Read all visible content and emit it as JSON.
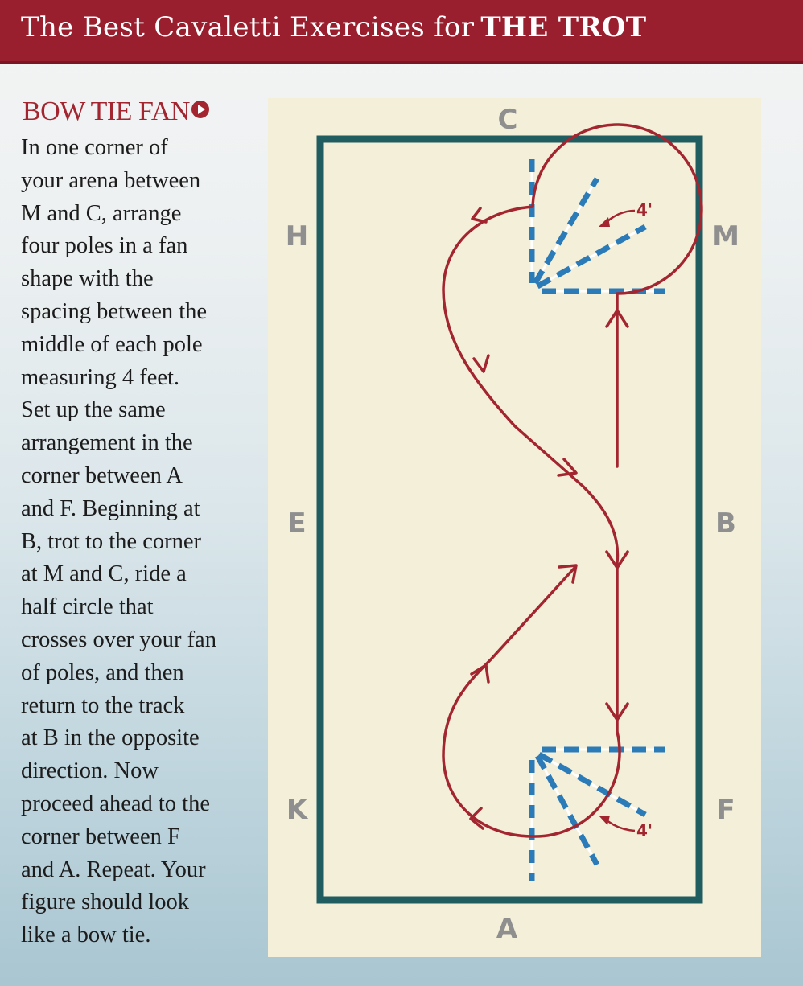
{
  "header": {
    "title_prefix": "The Best Cavaletti Exercises for",
    "title_emphasis": "THE TROT"
  },
  "section": {
    "title": "BOW TIE FAN",
    "arrow_icon": "play-circle-icon"
  },
  "body_lines": [
    "In one corner of",
    "your arena between",
    "M and C, arrange",
    "four poles in a fan",
    "shape with the",
    "spacing between the",
    "middle of each pole",
    "measuring 4 feet.",
    "Set up the same",
    "arrangement in the",
    "corner between A",
    "and F. Beginning at",
    "B, trot to the corner",
    "at M and C, ride a",
    "half circle that",
    "crosses over your fan",
    "of poles, and then",
    "return to the track",
    "at B in the opposite",
    "direction. Now",
    "proceed ahead to the",
    "corner between F",
    "and A. Repeat. Your",
    "figure should look",
    "like a bow tie."
  ],
  "diagram": {
    "letters": {
      "c": "C",
      "h": "H",
      "m": "M",
      "e": "E",
      "b": "B",
      "k": "K",
      "f": "F",
      "a": "A"
    },
    "spacing_label_top": "4'",
    "spacing_label_bottom": "4'",
    "colors": {
      "arena_border": "#1f5d61",
      "path": "#a2252f",
      "pole_blue": "#2b7bb9",
      "pole_white": "#ffffff",
      "letter": "#8f8f8f",
      "background": "#f4efd9",
      "header": "#9a1f2e"
    }
  }
}
